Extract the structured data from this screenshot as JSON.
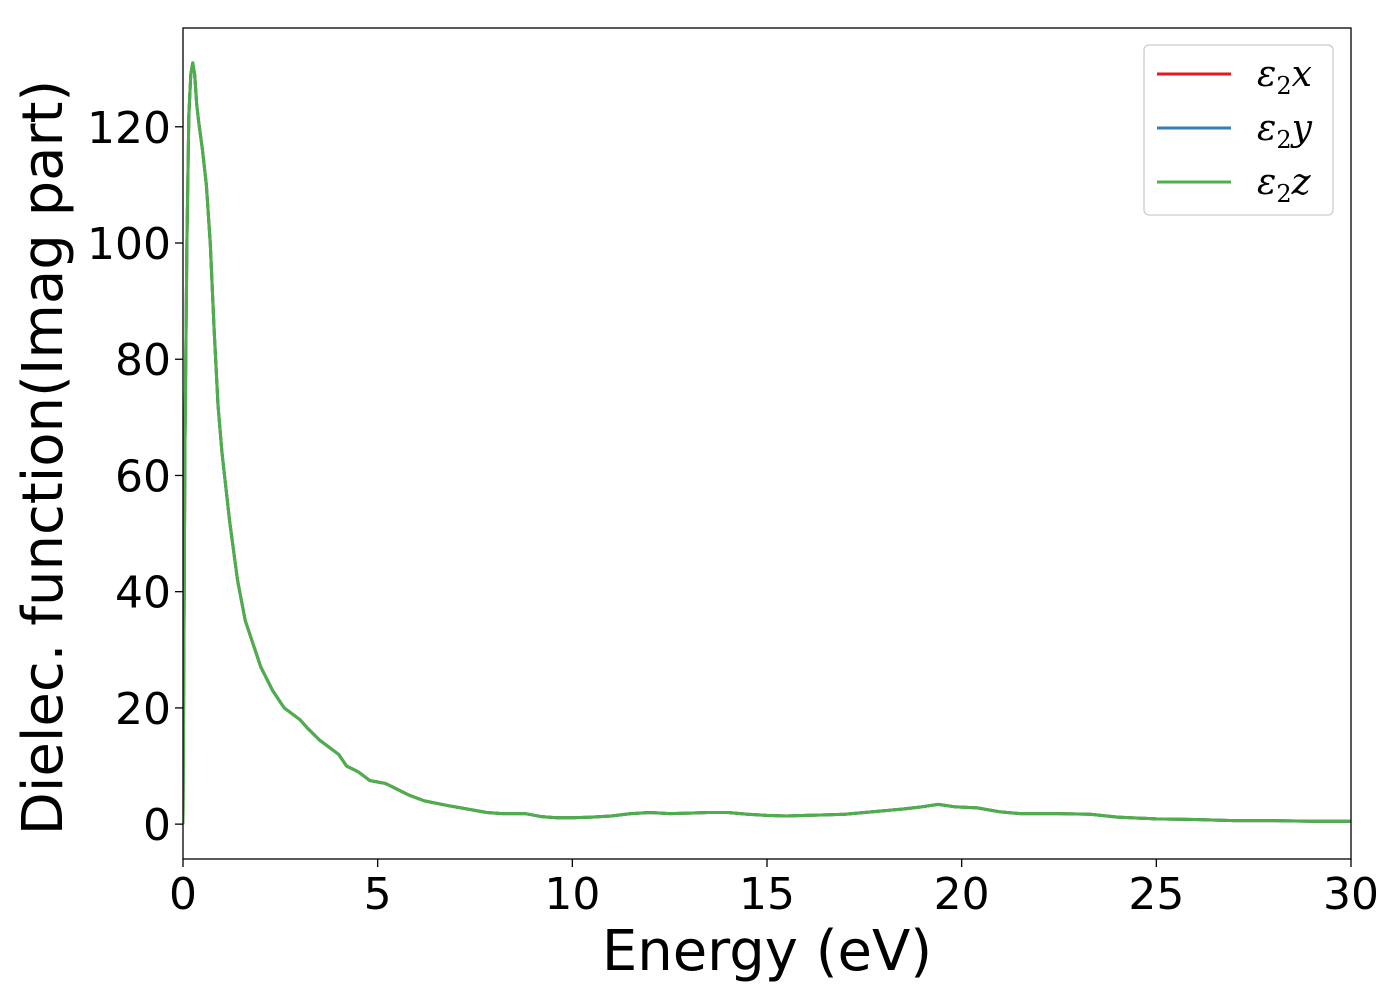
{
  "chart_data": {
    "type": "line",
    "title": "",
    "xlabel": "Energy (eV)",
    "ylabel": "Dielec. function(Imag part)",
    "xlim": [
      0,
      30
    ],
    "ylim": [
      -6,
      137
    ],
    "xticks": [
      0,
      5,
      10,
      15,
      20,
      25,
      30
    ],
    "yticks": [
      0,
      20,
      40,
      60,
      80,
      100,
      120
    ],
    "grid": false,
    "legend_position": "top-right",
    "series": [
      {
        "name": "ε2x",
        "symbol": "ε",
        "sub": "2",
        "suffix": "x",
        "color": "#e41a1c",
        "x": [
          0,
          0.05,
          0.1,
          0.15,
          0.2,
          0.25,
          0.3,
          0.35,
          0.4,
          0.5,
          0.6,
          0.7,
          0.8,
          0.9,
          1.0,
          1.1,
          1.2,
          1.4,
          1.6,
          1.8,
          2.0,
          2.3,
          2.6,
          3.0,
          3.2,
          3.5,
          4.0,
          4.2,
          4.5,
          4.8,
          5.2,
          5.5,
          5.8,
          6.2,
          6.8,
          7.3,
          7.8,
          8.2,
          8.8,
          9.2,
          9.6,
          10.0,
          10.5,
          11.0,
          11.5,
          12.0,
          12.5,
          13.0,
          13.5,
          14.0,
          14.5,
          15.0,
          15.5,
          16.0,
          16.5,
          17.0,
          17.5,
          18.0,
          18.5,
          19.0,
          19.4,
          19.8,
          20.4,
          21.0,
          21.5,
          22.0,
          22.5,
          23.3,
          24.0,
          25.0,
          26.0,
          27.0,
          28.0,
          29.0,
          30.0
        ],
        "y": [
          0,
          65,
          100,
          122,
          129,
          131,
          129,
          124,
          121,
          116,
          110,
          100,
          85,
          72,
          64,
          58,
          52,
          42,
          35,
          31,
          27,
          23,
          20,
          18,
          16.5,
          14.5,
          12,
          10,
          9,
          7.5,
          7,
          6,
          5,
          4,
          3.2,
          2.6,
          2,
          1.8,
          1.8,
          1.3,
          1.1,
          1.1,
          1.2,
          1.4,
          1.8,
          2.0,
          1.8,
          1.9,
          2.0,
          2.0,
          1.7,
          1.5,
          1.4,
          1.5,
          1.6,
          1.7,
          2.0,
          2.3,
          2.6,
          3.0,
          3.4,
          3.0,
          2.8,
          2.1,
          1.8,
          1.8,
          1.8,
          1.7,
          1.2,
          0.9,
          0.8,
          0.6,
          0.6,
          0.5,
          0.5
        ]
      },
      {
        "name": "ε2y",
        "symbol": "ε",
        "sub": "2",
        "suffix": "y",
        "color": "#377eb8",
        "x": [
          0,
          0.05,
          0.1,
          0.15,
          0.2,
          0.25,
          0.3,
          0.35,
          0.4,
          0.5,
          0.6,
          0.7,
          0.8,
          0.9,
          1.0,
          1.1,
          1.2,
          1.4,
          1.6,
          1.8,
          2.0,
          2.3,
          2.6,
          3.0,
          3.2,
          3.5,
          4.0,
          4.2,
          4.5,
          4.8,
          5.2,
          5.5,
          5.8,
          6.2,
          6.8,
          7.3,
          7.8,
          8.2,
          8.8,
          9.2,
          9.6,
          10.0,
          10.5,
          11.0,
          11.5,
          12.0,
          12.5,
          13.0,
          13.5,
          14.0,
          14.5,
          15.0,
          15.5,
          16.0,
          16.5,
          17.0,
          17.5,
          18.0,
          18.5,
          19.0,
          19.4,
          19.8,
          20.4,
          21.0,
          21.5,
          22.0,
          22.5,
          23.3,
          24.0,
          25.0,
          26.0,
          27.0,
          28.0,
          29.0,
          30.0
        ],
        "y": [
          0,
          65,
          100,
          122,
          129,
          131,
          129,
          124,
          121,
          116,
          110,
          100,
          85,
          72,
          64,
          58,
          52,
          42,
          35,
          31,
          27,
          23,
          20,
          18,
          16.5,
          14.5,
          12,
          10,
          9,
          7.5,
          7,
          6,
          5,
          4,
          3.2,
          2.6,
          2,
          1.8,
          1.8,
          1.3,
          1.1,
          1.1,
          1.2,
          1.4,
          1.8,
          2.0,
          1.8,
          1.9,
          2.0,
          2.0,
          1.7,
          1.5,
          1.4,
          1.5,
          1.6,
          1.7,
          2.0,
          2.3,
          2.6,
          3.0,
          3.4,
          3.0,
          2.8,
          2.1,
          1.8,
          1.8,
          1.8,
          1.7,
          1.2,
          0.9,
          0.8,
          0.6,
          0.6,
          0.5,
          0.5
        ]
      },
      {
        "name": "ε2z",
        "symbol": "ε",
        "sub": "2",
        "suffix": "z",
        "color": "#4daf4a",
        "x": [
          0,
          0.05,
          0.1,
          0.15,
          0.2,
          0.25,
          0.3,
          0.35,
          0.4,
          0.5,
          0.6,
          0.7,
          0.8,
          0.9,
          1.0,
          1.1,
          1.2,
          1.4,
          1.6,
          1.8,
          2.0,
          2.3,
          2.6,
          3.0,
          3.2,
          3.5,
          4.0,
          4.2,
          4.5,
          4.8,
          5.2,
          5.5,
          5.8,
          6.2,
          6.8,
          7.3,
          7.8,
          8.2,
          8.8,
          9.2,
          9.6,
          10.0,
          10.5,
          11.0,
          11.5,
          12.0,
          12.5,
          13.0,
          13.5,
          14.0,
          14.5,
          15.0,
          15.5,
          16.0,
          16.5,
          17.0,
          17.5,
          18.0,
          18.5,
          19.0,
          19.4,
          19.8,
          20.4,
          21.0,
          21.5,
          22.0,
          22.5,
          23.3,
          24.0,
          25.0,
          26.0,
          27.0,
          28.0,
          29.0,
          30.0
        ],
        "y": [
          0,
          65,
          100,
          122,
          129,
          131,
          129,
          124,
          121,
          116,
          110,
          100,
          85,
          72,
          64,
          58,
          52,
          42,
          35,
          31,
          27,
          23,
          20,
          18,
          16.5,
          14.5,
          12,
          10,
          9,
          7.5,
          7,
          6,
          5,
          4,
          3.2,
          2.6,
          2,
          1.8,
          1.8,
          1.3,
          1.1,
          1.1,
          1.2,
          1.4,
          1.8,
          2.0,
          1.8,
          1.9,
          2.0,
          2.0,
          1.7,
          1.5,
          1.4,
          1.5,
          1.6,
          1.7,
          2.0,
          2.3,
          2.6,
          3.0,
          3.4,
          3.0,
          2.8,
          2.1,
          1.8,
          1.8,
          1.8,
          1.7,
          1.2,
          0.9,
          0.8,
          0.6,
          0.6,
          0.5,
          0.5
        ]
      }
    ]
  }
}
